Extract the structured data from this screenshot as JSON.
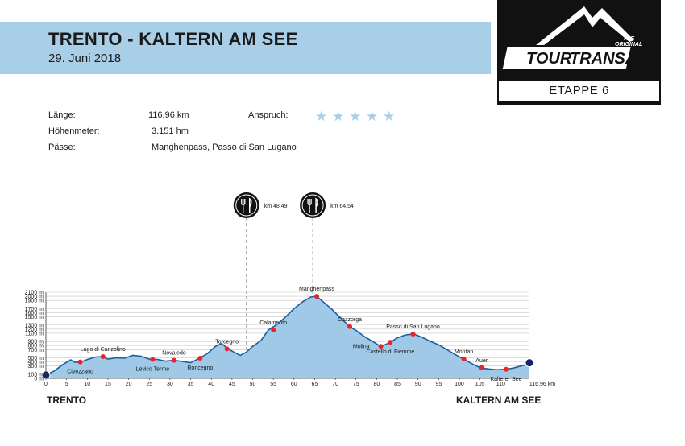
{
  "header": {
    "title": "TRENTO - KALTERN AM SEE",
    "date": "29. Juni 2018"
  },
  "logo": {
    "brand_tour": "TOUR",
    "brand_transalp": "TRANSALP",
    "tagline_line1": "THE",
    "tagline_line2": "ORIGINAL",
    "stage": "ETAPPE 6",
    "icon": "mountain-logo-icon"
  },
  "stats": {
    "length_label": "Länge:",
    "length_value": "116,96 km",
    "elevation_label": "Höhenmeter:",
    "elevation_value": "3.151 hm",
    "passes_label": "Pässe:",
    "passes_value": "Manghenpass, Passo di San Lugano",
    "difficulty_label": "Anspruch:",
    "difficulty_stars": 5,
    "star_glyph": "★"
  },
  "colors": {
    "band": "#a9cfe8",
    "fill": "#9fc9e6",
    "line": "#1d5f9e",
    "marker": "#e8232a",
    "endpoint": "#15236b",
    "grid": "#c8c8c8"
  },
  "chart_data": {
    "type": "area",
    "xlabel": "",
    "ylabel": "",
    "x_unit": "km",
    "x_ticks": [
      0,
      5,
      10,
      15,
      20,
      25,
      30,
      35,
      40,
      45,
      50,
      55,
      60,
      65,
      70,
      75,
      80,
      85,
      90,
      95,
      100,
      105,
      110
    ],
    "x_end_tick": "116.96 km",
    "y_ticks": [
      "0 m",
      "100 m",
      "300 m",
      "400 m",
      "500 m",
      "700 m",
      "800 m",
      "900 m",
      "1100 m",
      "1200 m",
      "1300 m",
      "1500 m",
      "1600 m",
      "1700 m",
      "1900 m",
      "2000 m",
      "2100 m"
    ],
    "ylim": [
      0,
      2100
    ],
    "xlim": [
      0,
      116.96
    ],
    "grid": true,
    "series": [
      {
        "x": [
          0,
          2,
          4,
          6,
          7,
          8.5,
          10,
          12,
          13.5,
          15,
          17,
          19,
          21,
          23,
          25,
          27,
          29,
          31,
          33,
          35,
          37,
          39,
          41,
          42.5,
          44,
          45.5,
          47,
          48.5,
          50,
          52,
          53.8,
          56,
          58,
          60,
          62,
          64,
          65.5,
          67,
          69,
          71,
          73.5,
          75,
          77,
          79,
          81,
          82,
          83.5,
          85,
          87,
          89,
          91,
          93,
          95,
          97,
          99,
          101,
          103,
          105,
          107,
          109,
          111,
          113,
          114.5,
          116,
          116.96
        ],
        "y": [
          80,
          180,
          330,
          450,
          390,
          400,
          460,
          520,
          530,
          470,
          500,
          490,
          560,
          540,
          470,
          460,
          420,
          440,
          410,
          380,
          480,
          600,
          780,
          850,
          720,
          640,
          560,
          640,
          780,
          920,
          1180,
          1320,
          1500,
          1700,
          1860,
          1980,
          2000,
          1870,
          1700,
          1500,
          1260,
          1170,
          1020,
          900,
          780,
          820,
          890,
          990,
          1060,
          1080,
          1000,
          900,
          820,
          700,
          580,
          470,
          360,
          260,
          230,
          210,
          220,
          250,
          290,
          330,
          380
        ]
      }
    ],
    "places": [
      {
        "name": "Civezzano",
        "km": 8.3,
        "elev": 400,
        "label_pos": "below"
      },
      {
        "name": "Lago di Canzolino",
        "km": 13.8,
        "elev": 530,
        "label_pos": "above"
      },
      {
        "name": "Levico Terme",
        "km": 25.8,
        "elev": 460,
        "label_pos": "below"
      },
      {
        "name": "Novaledo",
        "km": 31,
        "elev": 440,
        "label_pos": "above"
      },
      {
        "name": "Roncegno",
        "km": 37.3,
        "elev": 490,
        "label_pos": "below"
      },
      {
        "name": "Torcegno",
        "km": 43.8,
        "elev": 720,
        "label_pos": "above"
      },
      {
        "name": "Calamento",
        "km": 55,
        "elev": 1180,
        "label_pos": "above"
      },
      {
        "name": "Manghenpass",
        "km": 65.5,
        "elev": 2000,
        "label_pos": "above"
      },
      {
        "name": "Cazzorga",
        "km": 73.5,
        "elev": 1260,
        "label_pos": "above"
      },
      {
        "name": "Molina",
        "km": 81,
        "elev": 780,
        "label_pos": "left"
      },
      {
        "name": "Castello di Fiemme",
        "km": 83.3,
        "elev": 880,
        "label_pos": "below"
      },
      {
        "name": "Passo di San Lugano",
        "km": 88.8,
        "elev": 1080,
        "label_pos": "above"
      },
      {
        "name": "Montan",
        "km": 101.1,
        "elev": 470,
        "label_pos": "above"
      },
      {
        "name": "Auer",
        "km": 105.4,
        "elev": 260,
        "label_pos": "above"
      },
      {
        "name": "Kalterer See",
        "km": 111.3,
        "elev": 220,
        "label_pos": "below"
      }
    ],
    "food_stops": [
      {
        "km": 48.49,
        "label": "km 48,49",
        "icon": "restaurant-icon"
      },
      {
        "km": 64.54,
        "label": "km 64,54",
        "icon": "restaurant-icon"
      }
    ]
  },
  "footer": {
    "start": "TRENTO",
    "end": "KALTERN AM SEE"
  }
}
